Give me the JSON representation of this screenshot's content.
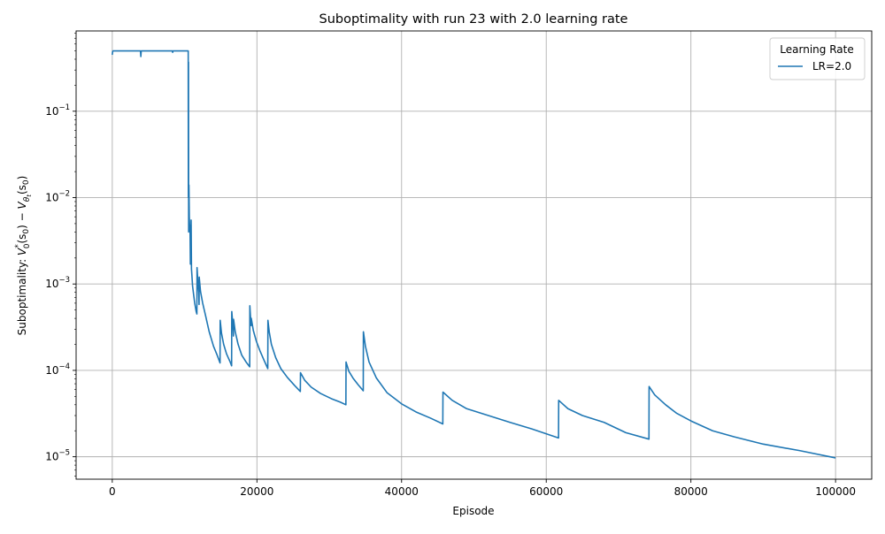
{
  "chart_data": {
    "type": "line",
    "title": "Suboptimality with run 23 with 2.0 learning rate",
    "xlabel": "Episode",
    "ylabel_parts": {
      "prefix": "Suboptimality: ",
      "v": "V",
      "star": "*",
      "zero": "0",
      "arg": "(s",
      "arg_sub": "0",
      "arg_close": ")",
      "minus": " − ",
      "theta": "θ",
      "t": "t"
    },
    "xlim": [
      -5000,
      105000
    ],
    "ylim": [
      5.5e-06,
      0.85
    ],
    "yscale": "log",
    "grid": true,
    "x_ticks": [
      0,
      20000,
      40000,
      60000,
      80000,
      100000
    ],
    "x_tick_labels": [
      "0",
      "20000",
      "40000",
      "60000",
      "80000",
      "100000"
    ],
    "y_ticks": [
      1e-05,
      0.0001,
      0.001,
      0.01,
      0.1
    ],
    "y_tick_labels": [
      {
        "base": "10",
        "exp": "−5"
      },
      {
        "base": "10",
        "exp": "−4"
      },
      {
        "base": "10",
        "exp": "−3"
      },
      {
        "base": "10",
        "exp": "−2"
      },
      {
        "base": "10",
        "exp": "−1"
      }
    ],
    "legend": {
      "title": "Learning Rate",
      "placement": "upper-right"
    },
    "series": [
      {
        "name": "LR=2.0",
        "color": "#1f77b4",
        "points": [
          [
            0,
            0.45
          ],
          [
            50,
            0.49
          ],
          [
            100,
            0.5
          ],
          [
            3900,
            0.5
          ],
          [
            3950,
            0.43
          ],
          [
            4000,
            0.5
          ],
          [
            8300,
            0.5
          ],
          [
            8350,
            0.48
          ],
          [
            8400,
            0.5
          ],
          [
            10500,
            0.5
          ],
          [
            10520,
            0.01
          ],
          [
            10540,
            0.37
          ],
          [
            10560,
            0.004
          ],
          [
            10600,
            0.014
          ],
          [
            10650,
            0.006
          ],
          [
            10700,
            0.0045
          ],
          [
            10750,
            0.0048
          ],
          [
            10800,
            0.0017
          ],
          [
            10850,
            0.0026
          ],
          [
            10900,
            0.0055
          ],
          [
            10950,
            0.0015
          ],
          [
            11000,
            0.0013
          ],
          [
            11100,
            0.00095
          ],
          [
            11250,
            0.00075
          ],
          [
            11400,
            0.0006
          ],
          [
            11600,
            0.00048
          ],
          [
            11700,
            0.00045
          ],
          [
            11720,
            0.00155
          ],
          [
            11850,
            0.001
          ],
          [
            11950,
            0.0008
          ],
          [
            12000,
            0.00058
          ],
          [
            12020,
            0.0012
          ],
          [
            12200,
            0.00082
          ],
          [
            12500,
            0.0006
          ],
          [
            12900,
            0.00043
          ],
          [
            13400,
            0.00028
          ],
          [
            14000,
            0.00019
          ],
          [
            14500,
            0.00015
          ],
          [
            14900,
            0.000122
          ],
          [
            14920,
            0.00038
          ],
          [
            15100,
            0.00027
          ],
          [
            15400,
            0.0002
          ],
          [
            15800,
            0.000155
          ],
          [
            16300,
            0.000125
          ],
          [
            16500,
            0.000113
          ],
          [
            16520,
            0.00048
          ],
          [
            16600,
            0.0004
          ],
          [
            16700,
            0.00032
          ],
          [
            16750,
            0.00025
          ],
          [
            16770,
            0.00039
          ],
          [
            17000,
            0.00028
          ],
          [
            17400,
            0.0002
          ],
          [
            17900,
            0.00015
          ],
          [
            18500,
            0.000125
          ],
          [
            19000,
            0.00011
          ],
          [
            19020,
            0.00056
          ],
          [
            19100,
            0.00043
          ],
          [
            19200,
            0.00033
          ],
          [
            19220,
            0.0004
          ],
          [
            19500,
            0.00029
          ],
          [
            19900,
            0.00022
          ],
          [
            20400,
            0.00017
          ],
          [
            21000,
            0.00013
          ],
          [
            21500,
            0.000105
          ],
          [
            21520,
            0.00038
          ],
          [
            21700,
            0.00028
          ],
          [
            22000,
            0.0002
          ],
          [
            22600,
            0.00014
          ],
          [
            23300,
            0.000105
          ],
          [
            24200,
            8.3e-05
          ],
          [
            25200,
            6.7e-05
          ],
          [
            26000,
            5.7e-05
          ],
          [
            26020,
            9.4e-05
          ],
          [
            26600,
            7.7e-05
          ],
          [
            27500,
            6.4e-05
          ],
          [
            28800,
            5.4e-05
          ],
          [
            30300,
            4.7e-05
          ],
          [
            31500,
            4.3e-05
          ],
          [
            32300,
            4e-05
          ],
          [
            32320,
            0.000125
          ],
          [
            32700,
            9.8e-05
          ],
          [
            33300,
            8.1e-05
          ],
          [
            34000,
            6.8e-05
          ],
          [
            34700,
            5.8e-05
          ],
          [
            34720,
            0.00028
          ],
          [
            35000,
            0.00019
          ],
          [
            35500,
            0.000125
          ],
          [
            36500,
            8.2e-05
          ],
          [
            38000,
            5.5e-05
          ],
          [
            40000,
            4.1e-05
          ],
          [
            42000,
            3.3e-05
          ],
          [
            44000,
            2.8e-05
          ],
          [
            45700,
            2.4e-05
          ],
          [
            45720,
            5.6e-05
          ],
          [
            47000,
            4.5e-05
          ],
          [
            49000,
            3.6e-05
          ],
          [
            52000,
            3e-05
          ],
          [
            55000,
            2.5e-05
          ],
          [
            58000,
            2.1e-05
          ],
          [
            61700,
            1.65e-05
          ],
          [
            61720,
            4.5e-05
          ],
          [
            63000,
            3.6e-05
          ],
          [
            65000,
            3e-05
          ],
          [
            68000,
            2.5e-05
          ],
          [
            71000,
            1.9e-05
          ],
          [
            74200,
            1.6e-05
          ],
          [
            74220,
            6.5e-05
          ],
          [
            75000,
            5.2e-05
          ],
          [
            76500,
            4e-05
          ],
          [
            78000,
            3.2e-05
          ],
          [
            80000,
            2.6e-05
          ],
          [
            83000,
            2e-05
          ],
          [
            86000,
            1.7e-05
          ],
          [
            90000,
            1.4e-05
          ],
          [
            95000,
            1.18e-05
          ],
          [
            100000,
            9.7e-06
          ]
        ]
      }
    ]
  }
}
